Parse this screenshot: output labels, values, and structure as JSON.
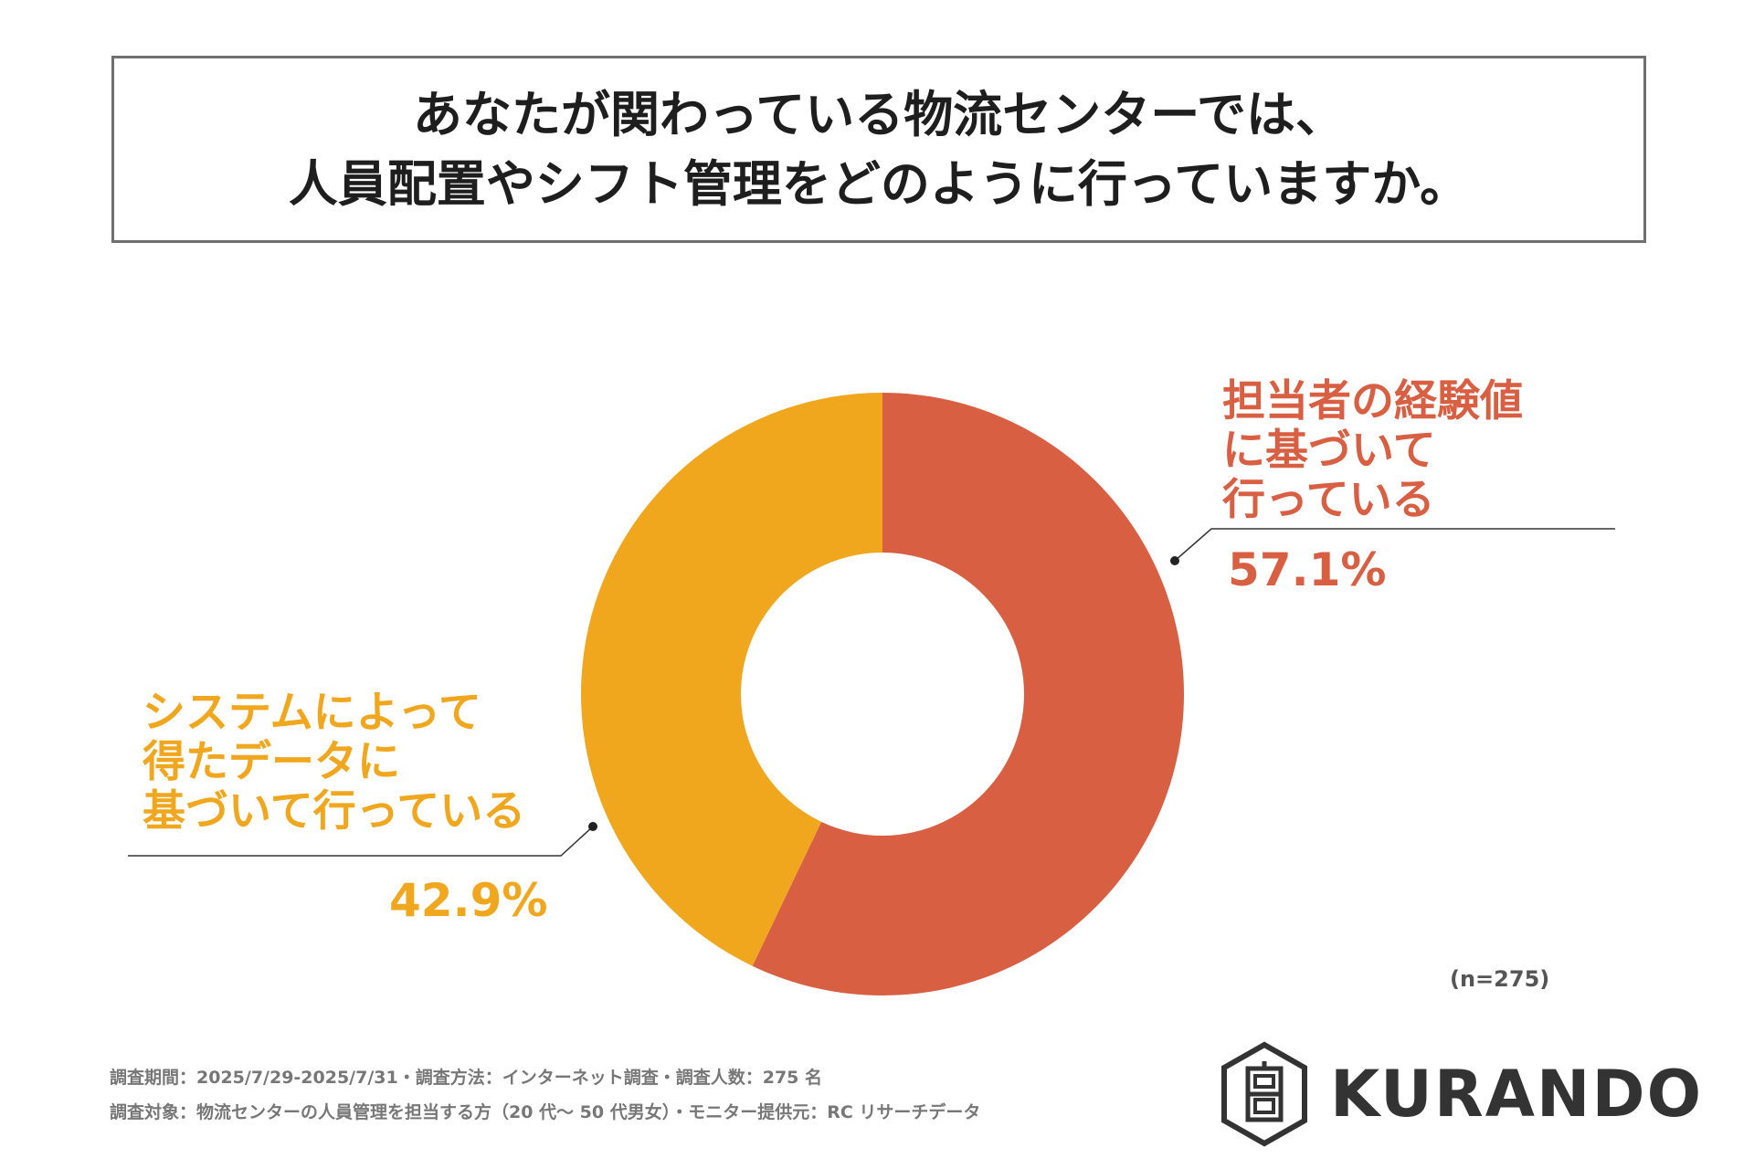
{
  "title": {
    "line1": "あなたが関わっている物流センターでは、",
    "line2": "人員配置やシフト管理をどのように行っていますか。"
  },
  "chart_data": {
    "type": "pie",
    "donut": true,
    "categories": [
      "担当者の経験値に基づいて行っている",
      "システムによって得たデータに基づいて行っている"
    ],
    "values": [
      57.1,
      42.9
    ],
    "unit": "%",
    "colors": [
      "#D95F43",
      "#F0A71E"
    ],
    "slice_labels": [
      [
        "担当者の経験値",
        "に基づいて",
        "行っている"
      ],
      [
        "システムによって",
        "得たデータに",
        "基づいて行っている"
      ]
    ],
    "value_labels": [
      "57.1%",
      "42.9%"
    ],
    "sample_size": "(n=275)"
  },
  "footer": {
    "line1": "調査期間：2025/7/29-2025/7/31・調査方法：インターネット調査・調査人数：275 名",
    "line2": "調査対象：物流センターの人員管理を担当する方（20 代～ 50 代男女）・モニター提供元：RC リサーチデータ"
  },
  "logo": {
    "text": "KURANDO",
    "icon": "kurando-hexagon-logo-icon"
  }
}
